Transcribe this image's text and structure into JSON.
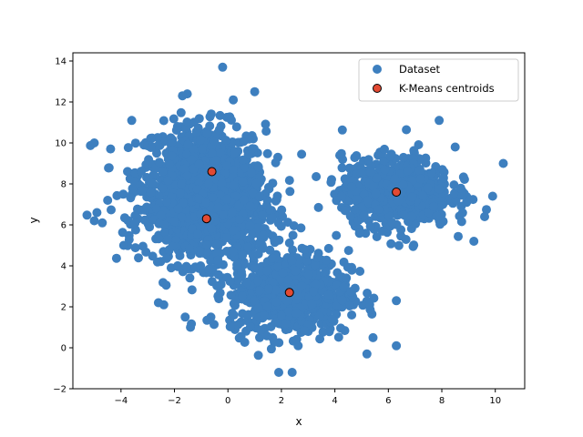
{
  "chart_data": {
    "type": "scatter",
    "title": "",
    "xlabel": "x",
    "ylabel": "y",
    "xlim": [
      -5.8,
      11.1
    ],
    "ylim": [
      -2,
      14.4
    ],
    "xticks": [
      -4,
      -2,
      0,
      2,
      4,
      6,
      8,
      10
    ],
    "yticks": [
      -2,
      0,
      2,
      4,
      6,
      8,
      10,
      12,
      14
    ],
    "x_tick_labels": [
      "−4",
      "−2",
      "0",
      "2",
      "4",
      "6",
      "8",
      "10"
    ],
    "y_tick_labels": [
      "−2",
      "0",
      "2",
      "4",
      "6",
      "8",
      "10",
      "12",
      "14"
    ],
    "grid": false,
    "legend_position": "top-right",
    "series": [
      {
        "name": "Dataset",
        "color": "#3d7fbf",
        "marker": "circle",
        "clusters": [
          {
            "center": [
              -1.0,
              8.5
            ],
            "spread": [
              1.4,
              1.4
            ]
          },
          {
            "center": [
              -0.8,
              6.3
            ],
            "spread": [
              1.4,
              1.3
            ]
          },
          {
            "center": [
              2.3,
              2.7
            ],
            "spread": [
              1.3,
              1.2
            ]
          },
          {
            "center": [
              6.3,
              7.6
            ],
            "spread": [
              1.2,
              1.0
            ]
          }
        ],
        "outliers": [
          [
            -0.2,
            13.7
          ],
          [
            -5.0,
            10.0
          ],
          [
            -5.0,
            6.2
          ],
          [
            -4.9,
            6.6
          ],
          [
            -4.7,
            6.1
          ],
          [
            -4.5,
            7.2
          ],
          [
            -3.9,
            5.0
          ],
          [
            1.9,
            -1.2
          ],
          [
            2.4,
            -1.2
          ],
          [
            5.2,
            -0.3
          ],
          [
            6.3,
            0.1
          ],
          [
            10.3,
            9.0
          ],
          [
            9.9,
            7.4
          ],
          [
            9.6,
            6.4
          ],
          [
            9.2,
            5.2
          ],
          [
            1.0,
            12.5
          ],
          [
            -1.7,
            12.3
          ],
          [
            3.9,
            1.4
          ],
          [
            5.3,
            2.1
          ],
          [
            6.3,
            2.3
          ],
          [
            -2.4,
            2.1
          ],
          [
            -2.6,
            2.2
          ],
          [
            -1.6,
            1.5
          ],
          [
            -1.4,
            1.0
          ],
          [
            8.5,
            9.8
          ],
          [
            7.9,
            11.1
          ],
          [
            -3.6,
            11.1
          ],
          [
            0.2,
            12.1
          ]
        ]
      },
      {
        "name": "K-Means centroids",
        "color": "#e24a33",
        "edgecolor": "#000000",
        "marker": "circle",
        "points": [
          [
            -0.6,
            8.6
          ],
          [
            -0.8,
            6.3
          ],
          [
            2.3,
            2.7
          ],
          [
            6.3,
            7.6
          ]
        ]
      }
    ]
  }
}
